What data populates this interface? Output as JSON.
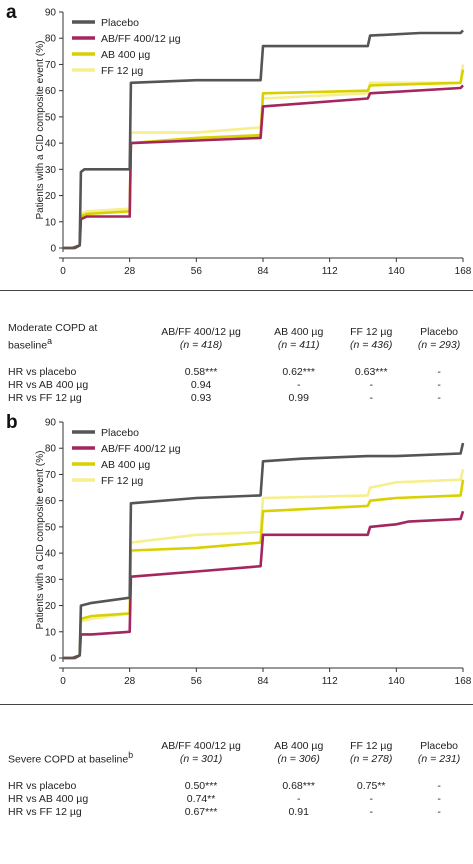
{
  "colors": {
    "placebo": "#555555",
    "abff": "#a3265f",
    "ab": "#d8d000",
    "ff": "#f6ef8f"
  },
  "panels": [
    {
      "letter": "a",
      "chart_data": {
        "type": "line",
        "title": "",
        "xlabel": "Duration of treatment (days)",
        "ylabel": "Patients with a CID composite event (%)",
        "xlim": [
          0,
          168
        ],
        "ylim": [
          0,
          90
        ],
        "xticks": [
          0,
          28,
          56,
          84,
          112,
          140,
          168
        ],
        "yticks": [
          0,
          10,
          20,
          30,
          40,
          50,
          60,
          70,
          80,
          90
        ],
        "legend_position": "top-left",
        "series": [
          {
            "name": "Placebo",
            "color_key": "placebo",
            "points": [
              [
                0,
                0
              ],
              [
                4,
                0
              ],
              [
                7,
                1
              ],
              [
                7.5,
                29
              ],
              [
                9,
                30
              ],
              [
                28,
                30
              ],
              [
                28.5,
                63
              ],
              [
                56,
                64
              ],
              [
                83,
                64
              ],
              [
                84,
                77
              ],
              [
                128,
                77
              ],
              [
                129,
                81
              ],
              [
                150,
                82
              ],
              [
                167,
                82
              ],
              [
                168,
                83
              ]
            ]
          },
          {
            "name": "AB/FF 400/12 µg",
            "color_key": "abff",
            "points": [
              [
                0,
                0
              ],
              [
                5,
                0
              ],
              [
                7,
                1
              ],
              [
                7.5,
                11
              ],
              [
                10,
                12
              ],
              [
                28,
                12
              ],
              [
                28.5,
                40
              ],
              [
                56,
                41
              ],
              [
                83,
                42
              ],
              [
                84,
                54
              ],
              [
                128,
                57
              ],
              [
                129,
                59
              ],
              [
                167,
                61
              ],
              [
                168,
                62
              ]
            ]
          },
          {
            "name": "AB 400 µg",
            "color_key": "ab",
            "points": [
              [
                0,
                0
              ],
              [
                5,
                0
              ],
              [
                7,
                1
              ],
              [
                7.5,
                12
              ],
              [
                10,
                13
              ],
              [
                28,
                14
              ],
              [
                28.5,
                40
              ],
              [
                56,
                42
              ],
              [
                83,
                43
              ],
              [
                84,
                59
              ],
              [
                128,
                60
              ],
              [
                129,
                62
              ],
              [
                167,
                63
              ],
              [
                168,
                68
              ]
            ]
          },
          {
            "name": "FF 12 µg",
            "color_key": "ff",
            "points": [
              [
                0,
                0
              ],
              [
                5,
                0
              ],
              [
                7,
                1
              ],
              [
                7.5,
                13
              ],
              [
                10,
                14
              ],
              [
                28,
                15
              ],
              [
                28.5,
                44
              ],
              [
                56,
                44
              ],
              [
                83,
                46
              ],
              [
                84,
                57
              ],
              [
                128,
                59
              ],
              [
                129,
                63
              ],
              [
                167,
                63
              ],
              [
                168,
                70
              ]
            ]
          }
        ]
      },
      "table": {
        "row_header": "Moderate COPD at baseline",
        "row_header_sup": "a",
        "columns": [
          {
            "name": "AB/FF 400/12 µg",
            "n": "(n = 418)"
          },
          {
            "name": "AB 400 µg",
            "n": "(n = 411)"
          },
          {
            "name": "FF 12 µg",
            "n": "(n = 436)"
          },
          {
            "name": "Placebo",
            "n": "(n = 293)"
          }
        ],
        "rows": [
          {
            "label": "HR vs placebo",
            "values": [
              "0.58***",
              "0.62***",
              "0.63***",
              "-"
            ]
          },
          {
            "label": "HR vs AB 400 µg",
            "values": [
              "0.94",
              "-",
              "-",
              "-"
            ]
          },
          {
            "label": "HR vs FF 12 µg",
            "values": [
              "0.93",
              "0.99",
              "-",
              "-"
            ]
          }
        ]
      }
    },
    {
      "letter": "b",
      "chart_data": {
        "type": "line",
        "title": "",
        "xlabel": "Duration of treatment (days)",
        "ylabel": "Patients with a CID composite event (%)",
        "xlim": [
          0,
          168
        ],
        "ylim": [
          0,
          90
        ],
        "xticks": [
          0,
          28,
          56,
          84,
          112,
          140,
          168
        ],
        "yticks": [
          0,
          10,
          20,
          30,
          40,
          50,
          60,
          70,
          80,
          90
        ],
        "legend_position": "top-left",
        "series": [
          {
            "name": "Placebo",
            "color_key": "placebo",
            "points": [
              [
                0,
                0
              ],
              [
                4,
                0
              ],
              [
                7,
                1
              ],
              [
                7.5,
                20
              ],
              [
                12,
                21
              ],
              [
                28,
                23
              ],
              [
                28.5,
                59
              ],
              [
                56,
                61
              ],
              [
                83,
                62
              ],
              [
                84,
                75
              ],
              [
                100,
                76
              ],
              [
                128,
                77
              ],
              [
                140,
                77
              ],
              [
                167,
                78
              ],
              [
                168,
                82
              ]
            ]
          },
          {
            "name": "AB/FF 400/12 µg",
            "color_key": "abff",
            "points": [
              [
                0,
                0
              ],
              [
                5,
                0
              ],
              [
                7,
                1
              ],
              [
                7.5,
                9
              ],
              [
                12,
                9
              ],
              [
                28,
                10
              ],
              [
                28.5,
                31
              ],
              [
                56,
                33
              ],
              [
                83,
                35
              ],
              [
                84,
                47
              ],
              [
                128,
                47
              ],
              [
                129,
                50
              ],
              [
                140,
                51
              ],
              [
                145,
                52
              ],
              [
                167,
                53
              ],
              [
                168,
                56
              ]
            ]
          },
          {
            "name": "AB 400 µg",
            "color_key": "ab",
            "points": [
              [
                0,
                0
              ],
              [
                5,
                0
              ],
              [
                7,
                1
              ],
              [
                7.5,
                15
              ],
              [
                12,
                16
              ],
              [
                28,
                17
              ],
              [
                28.5,
                41
              ],
              [
                56,
                42
              ],
              [
                83,
                44
              ],
              [
                84,
                56
              ],
              [
                128,
                58
              ],
              [
                129,
                60
              ],
              [
                140,
                61
              ],
              [
                167,
                62
              ],
              [
                168,
                68
              ]
            ]
          },
          {
            "name": "FF 12 µg",
            "color_key": "ff",
            "points": [
              [
                0,
                0
              ],
              [
                5,
                0
              ],
              [
                7,
                1
              ],
              [
                7.5,
                14
              ],
              [
                12,
                15
              ],
              [
                28,
                17
              ],
              [
                28.5,
                44
              ],
              [
                56,
                47
              ],
              [
                83,
                48
              ],
              [
                84,
                61
              ],
              [
                128,
                62
              ],
              [
                129,
                65
              ],
              [
                140,
                67
              ],
              [
                167,
                68
              ],
              [
                168,
                72
              ]
            ]
          }
        ]
      },
      "table": {
        "row_header": "Severe COPD at baseline",
        "row_header_sup": "b",
        "columns": [
          {
            "name": "AB/FF 400/12 µg",
            "n": "(n = 301)"
          },
          {
            "name": "AB 400 µg",
            "n": "(n = 306)"
          },
          {
            "name": "FF 12 µg",
            "n": "(n = 278)"
          },
          {
            "name": "Placebo",
            "n": "(n = 231)"
          }
        ],
        "rows": [
          {
            "label": "HR vs placebo",
            "values": [
              "0.50***",
              "0.68***",
              "0.75**",
              "-"
            ]
          },
          {
            "label": "HR vs AB 400 µg",
            "values": [
              "0.74**",
              "-",
              "-",
              "-"
            ]
          },
          {
            "label": "HR vs FF 12 µg",
            "values": [
              "0.67***",
              "0.91",
              "-",
              "-"
            ]
          }
        ]
      }
    }
  ]
}
